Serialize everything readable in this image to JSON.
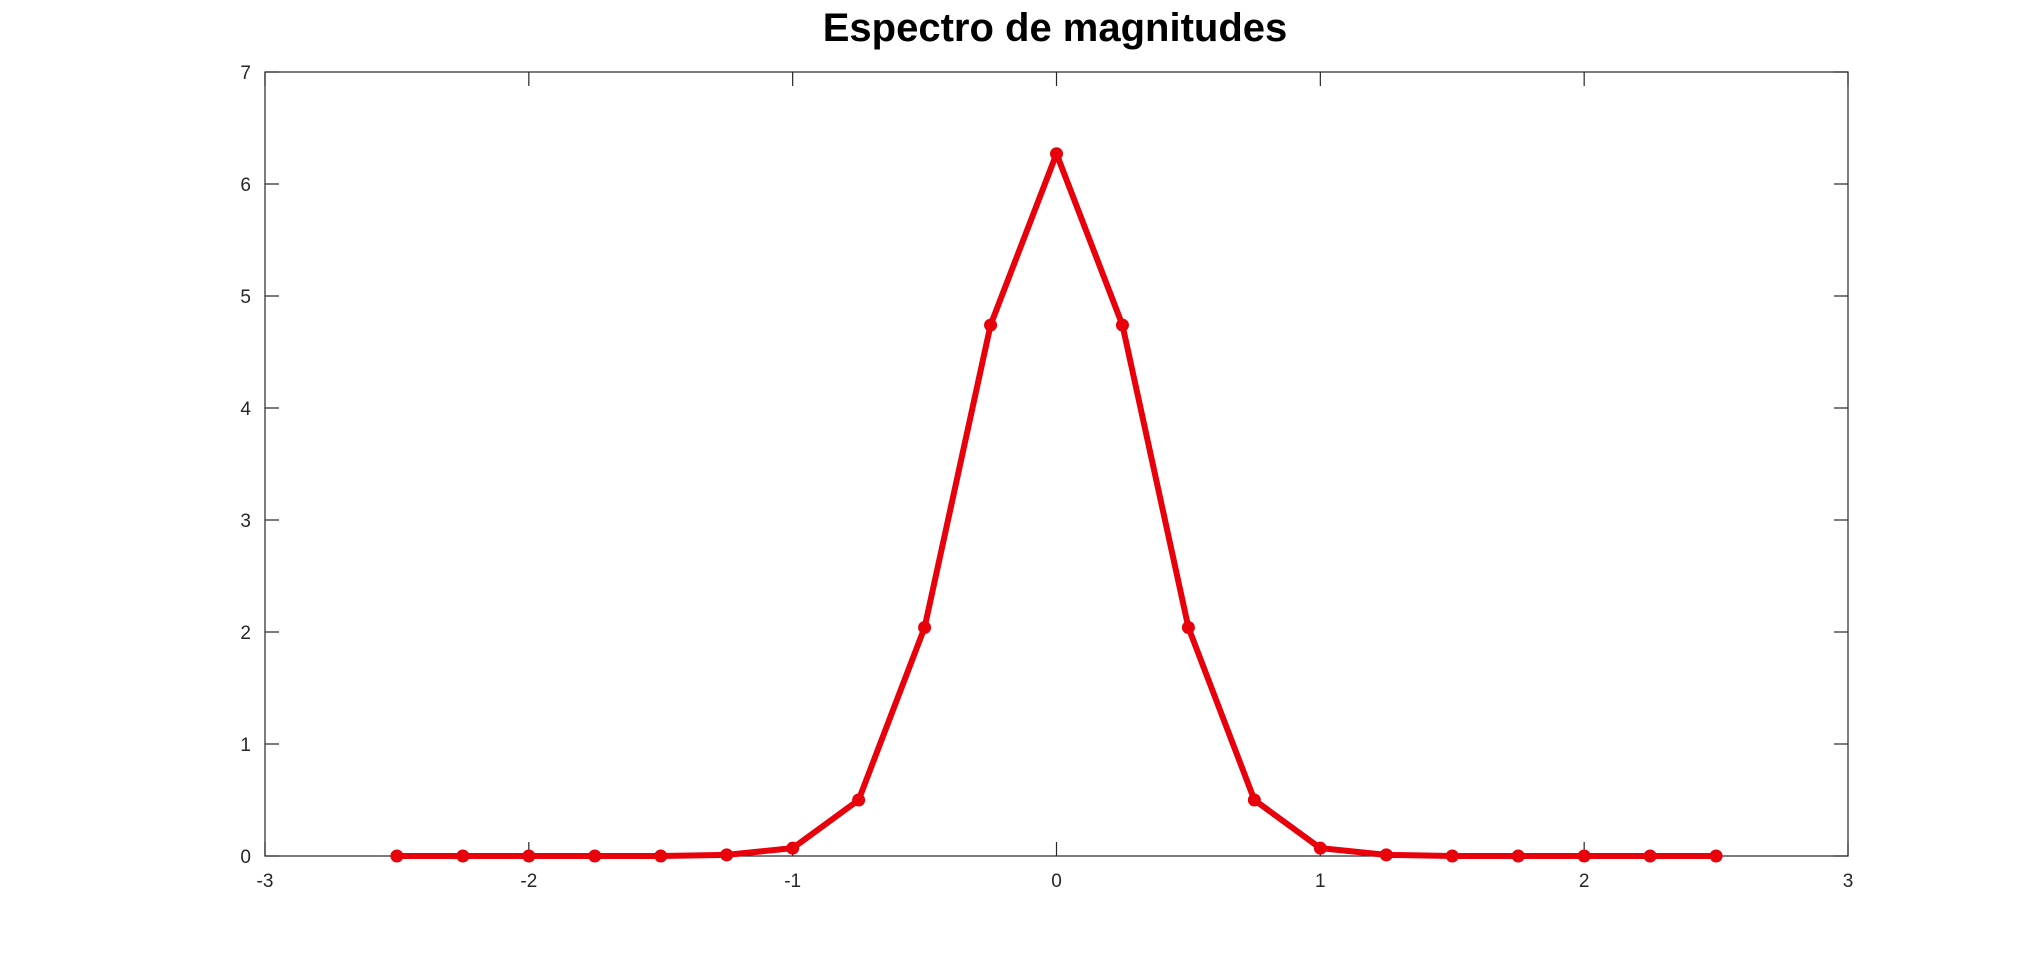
{
  "chart_data": {
    "type": "line",
    "title": "Espectro de magnitudes",
    "xlabel": "",
    "ylabel": "",
    "xlim": [
      -3,
      3
    ],
    "ylim": [
      0,
      7
    ],
    "xticks": [
      -3,
      -2,
      -1,
      0,
      1,
      2,
      3
    ],
    "yticks": [
      0,
      1,
      2,
      3,
      4,
      5,
      6,
      7
    ],
    "xtick_labels": [
      "-3",
      "-2",
      "-1",
      "0",
      "1",
      "2",
      "3"
    ],
    "ytick_labels": [
      "0",
      "1",
      "2",
      "3",
      "4",
      "5",
      "6",
      "7"
    ],
    "grid": false,
    "legend": "none",
    "series": [
      {
        "color": "#e8000b",
        "marker": "circle",
        "x": [
          -2.5,
          -2.25,
          -2.0,
          -1.75,
          -1.5,
          -1.25,
          -1.0,
          -0.75,
          -0.5,
          -0.25,
          0.0,
          0.25,
          0.5,
          0.75,
          1.0,
          1.25,
          1.5,
          1.75,
          2.0,
          2.25,
          2.5
        ],
        "y": [
          0.0,
          0.0,
          0.0,
          0.0,
          0.0,
          0.01,
          0.07,
          0.5,
          2.04,
          4.74,
          6.27,
          4.74,
          2.04,
          0.5,
          0.07,
          0.01,
          0.0,
          0.0,
          0.0,
          0.0,
          0.0
        ]
      }
    ]
  }
}
